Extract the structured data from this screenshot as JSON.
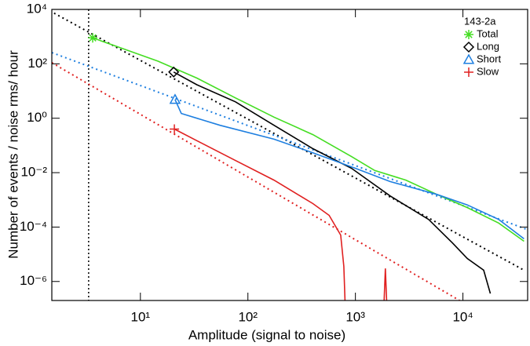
{
  "chart_data": {
    "type": "line",
    "xlabel": "Amplitude (signal to noise)",
    "ylabel": "Number of events / noise rms/ hour",
    "xscale": "log",
    "yscale": "log",
    "xlim": [
      1.5,
      40000
    ],
    "ylim": [
      2e-07,
      10000
    ],
    "xticks": [
      {
        "value": 10,
        "label": "10¹"
      },
      {
        "value": 100,
        "label": "10²"
      },
      {
        "value": 1000,
        "label": "10³"
      },
      {
        "value": 10000,
        "label": "10⁴"
      }
    ],
    "yticks": [
      {
        "value": 1e-06,
        "label": "10⁻⁶"
      },
      {
        "value": 0.0001,
        "label": "10⁻⁴"
      },
      {
        "value": 0.01,
        "label": "10⁻²"
      },
      {
        "value": 1,
        "label": "10⁰"
      },
      {
        "value": 100,
        "label": "10²"
      },
      {
        "value": 10000,
        "label": "10⁴"
      }
    ],
    "legend": {
      "title": "143-2a",
      "position": "upper right"
    },
    "series": [
      {
        "name": "Total",
        "color": "#44dd22",
        "marker": "asterisk",
        "x": [
          3.6,
          6.4,
          14.6,
          33.5,
          76.6,
          175,
          402,
          920,
          1510,
          2950,
          5700,
          11000,
          21500,
          37000
        ],
        "values": [
          900,
          400,
          125,
          30,
          5.6,
          1.1,
          0.25,
          0.039,
          0.012,
          0.0053,
          0.0016,
          0.00052,
          0.00014,
          3e-05
        ]
      },
      {
        "name": "Long",
        "color": "#000000",
        "marker": "diamond",
        "x": [
          20.4,
          33.5,
          76.6,
          175,
          402,
          920,
          2100,
          4800,
          8000,
          11000,
          15600,
          18000
        ],
        "values": [
          50,
          17,
          4,
          0.55,
          0.076,
          0.0145,
          0.0014,
          0.00019,
          2.6e-05,
          7e-06,
          2.6e-06,
          3.6e-07
        ]
      },
      {
        "name": "Short",
        "color": "#1e7fe0",
        "marker": "triangle",
        "x": [
          21,
          24,
          55,
          175,
          402,
          1000,
          2100,
          5700,
          11000,
          21500,
          37000
        ],
        "values": [
          4.9,
          1.5,
          0.55,
          0.17,
          0.054,
          0.0145,
          0.0047,
          0.0016,
          0.00065,
          0.00019,
          3.7e-05
        ]
      },
      {
        "name": "Slow",
        "color": "#e02020",
        "marker": "plus",
        "x": [
          20.7,
          33.5,
          76.6,
          175,
          402,
          570,
          730,
          780,
          800,
          null,
          1850,
          1900,
          1950
        ],
        "values": [
          0.4,
          0.15,
          0.028,
          0.0053,
          0.00073,
          0.00027,
          5.1e-05,
          3.6e-06,
          2e-07,
          null,
          2e-07,
          3e-06,
          2e-07
        ]
      }
    ],
    "fits": [
      {
        "color": "#000000",
        "x": [
          1.44,
          37000
        ],
        "values": [
          8800,
          2.6e-06
        ]
      },
      {
        "color": "#1e7fe0",
        "x": [
          1.5,
          40000
        ],
        "values": [
          260,
          8e-05
        ]
      },
      {
        "color": "#e02020",
        "x": [
          1.5,
          9300
        ],
        "values": [
          110,
          2e-07
        ]
      }
    ],
    "vline": {
      "x": 3.3,
      "color": "#000000"
    }
  }
}
